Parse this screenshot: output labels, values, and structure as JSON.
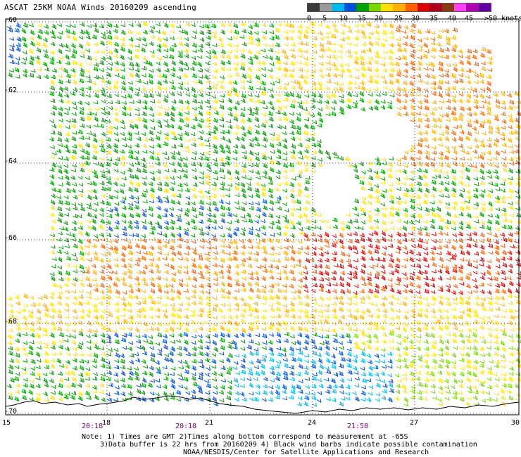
{
  "title": "ASCAT 25KM NOAA Winds 20160209 ascending",
  "legend": {
    "labels": [
      "0",
      "5",
      "10",
      "15",
      "20",
      "25",
      "30",
      "35",
      "40",
      "45",
      ">50 knots"
    ],
    "colors": [
      "#3a3a3a",
      "#9a9a9a",
      "#00b8f0",
      "#0050e0",
      "#00a000",
      "#7ad800",
      "#ffe000",
      "#ffb000",
      "#ff6000",
      "#e00000",
      "#b00020",
      "#8a3a10",
      "#ff40ff",
      "#b000b0",
      "#6000a0"
    ]
  },
  "map": {
    "lat_labels": [
      "-60",
      "-62",
      "-64",
      "-66",
      "-68",
      "-70"
    ],
    "lon_labels": [
      "15",
      "18",
      "21",
      "24",
      "27",
      "30"
    ],
    "time_labels": [
      "20:18",
      "20:18",
      "21:58"
    ]
  },
  "notes": {
    "line1": "Note: 1) Times are GMT 2)Times along bottom correspond to measurement at -65S",
    "line2": "3)Data buffer is 22 hrs from 20160209 4) Black wind barbs indicate possible contamination",
    "line3": "NOAA/NESDIS/Center for Satellite Applications and Research"
  }
}
